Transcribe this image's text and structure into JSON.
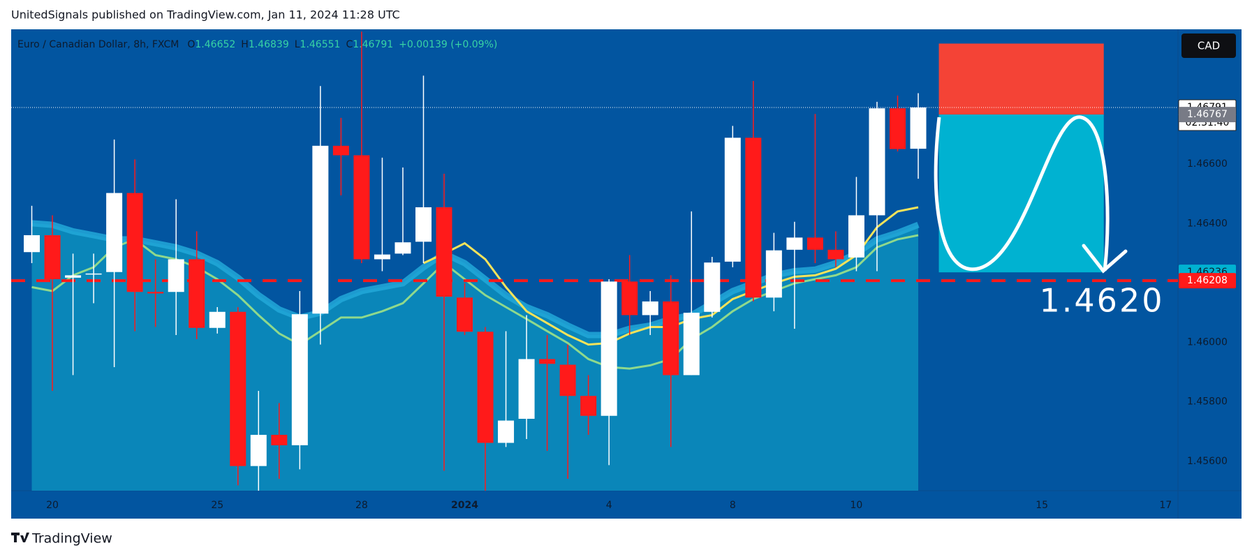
{
  "header": "UnitedSignals published on TradingView.com, Jan 11, 2024 11:28 UTC",
  "footer": "TradingView",
  "chart_data": {
    "type": "candlestick",
    "title": "Euro / Canadian Dollar, 8h, FXCM",
    "currency": "CAD",
    "ohlc_keys": [
      "O",
      "H",
      "L",
      "C"
    ],
    "change": "+0.00139 (+0.09%)",
    "x": [
      0,
      1,
      2,
      3,
      4,
      5,
      6,
      7,
      8,
      9,
      10,
      11,
      12,
      13,
      14,
      15,
      16,
      17,
      18,
      19,
      20,
      21,
      22,
      23,
      24,
      25,
      26,
      27,
      28,
      29,
      30,
      31,
      32,
      33,
      34,
      35,
      36,
      37,
      38,
      39,
      40,
      41,
      42,
      43
    ],
    "open": [
      1.46304,
      1.46361,
      1.46218,
      1.46229,
      1.46237,
      1.46503,
      1.4617,
      1.4617,
      1.4628,
      1.46049,
      1.46103,
      1.45584,
      1.45689,
      1.45654,
      1.46097,
      1.46662,
      1.4663,
      1.4628,
      1.46299,
      1.46339,
      1.46455,
      1.46151,
      1.46036,
      1.45662,
      1.45743,
      1.45944,
      1.45925,
      1.4582,
      1.45753,
      1.46205,
      1.46092,
      1.46138,
      1.4589,
      1.46103,
      1.46272,
      1.46689,
      1.46151,
      1.46312,
      1.46353,
      1.46312,
      1.46286,
      1.46428,
      1.46788,
      1.46652
    ],
    "high": [
      1.4646,
      1.46428,
      1.46299,
      1.46299,
      1.46683,
      1.46616,
      1.4628,
      1.46482,
      1.46374,
      1.46119,
      1.46119,
      1.45837,
      1.45796,
      1.46173,
      1.46863,
      1.46756,
      1.47046,
      1.46622,
      1.46589,
      1.46898,
      1.46568,
      1.46199,
      1.46052,
      1.46038,
      1.46092,
      1.46025,
      1.45993,
      1.4589,
      1.46213,
      1.46294,
      1.46173,
      1.46226,
      1.46441,
      1.46288,
      1.46729,
      1.4688,
      1.46369,
      1.46406,
      1.46769,
      1.46374,
      1.46557,
      1.4681,
      1.46831,
      1.46839
    ],
    "low": [
      1.46267,
      1.45837,
      1.4589,
      1.46132,
      1.45917,
      1.46038,
      1.46052,
      1.46025,
      1.46011,
      1.4603,
      1.45519,
      1.45501,
      1.45541,
      1.45573,
      1.45993,
      1.46495,
      1.46267,
      1.4624,
      1.46294,
      1.46267,
      1.45568,
      1.46025,
      1.45501,
      1.45648,
      1.45675,
      1.45635,
      1.45541,
      1.45689,
      1.45587,
      1.46025,
      1.46025,
      1.45648,
      1.4589,
      1.46084,
      1.46253,
      1.46138,
      1.46105,
      1.46046,
      1.46267,
      1.46253,
      1.4624,
      1.4624,
      1.46643,
      1.46551
    ],
    "close": [
      1.46361,
      1.46213,
      1.46226,
      1.46232,
      1.46503,
      1.4617,
      1.46165,
      1.4628,
      1.46049,
      1.46103,
      1.45584,
      1.45689,
      1.45654,
      1.46095,
      1.46662,
      1.4663,
      1.4628,
      1.46296,
      1.46337,
      1.46455,
      1.46154,
      1.46036,
      1.45662,
      1.45737,
      1.45944,
      1.45928,
      1.4582,
      1.45753,
      1.46205,
      1.46092,
      1.46138,
      1.4589,
      1.461,
      1.46269,
      1.46689,
      1.46151,
      1.4631,
      1.46353,
      1.46312,
      1.4628,
      1.46428,
      1.46788,
      1.46651,
      1.46791
    ],
    "up_color": "#ffffff",
    "down_color": "#ff1a1a",
    "area": {
      "color": "#0a86b9",
      "line_color": "#22a8d8",
      "values": [
        1.46401,
        1.46396,
        1.46374,
        1.46361,
        1.46347,
        1.46347,
        1.46334,
        1.4632,
        1.46299,
        1.46267,
        1.46218,
        1.46159,
        1.46111,
        1.46084,
        1.461,
        1.46146,
        1.46173,
        1.46186,
        1.46199,
        1.46253,
        1.46299,
        1.46267,
        1.46213,
        1.46159,
        1.46119,
        1.46092,
        1.46057,
        1.46025,
        1.46025,
        1.46046,
        1.46057,
        1.46079,
        1.46092,
        1.46132,
        1.46173,
        1.46199,
        1.46226,
        1.4624,
        1.46245,
        1.46267,
        1.46299,
        1.46347,
        1.46369,
        1.46396
      ]
    },
    "lines": [
      {
        "color": "#8fd98c",
        "values": [
          1.46186,
          1.46173,
          1.46226,
          1.46253,
          1.4632,
          1.46347,
          1.46294,
          1.4628,
          1.46253,
          1.46213,
          1.46159,
          1.46092,
          1.4603,
          1.45993,
          1.46038,
          1.46084,
          1.46084,
          1.46105,
          1.46132,
          1.46199,
          1.46267,
          1.46213,
          1.46159,
          1.46119,
          1.46079,
          1.46038,
          1.45998,
          1.45944,
          1.45917,
          1.45912,
          1.45923,
          1.45944,
          1.46011,
          1.46052,
          1.46105,
          1.46146,
          1.46173,
          1.46199,
          1.46213,
          1.46226,
          1.46253,
          1.4632,
          1.46347,
          1.46361
        ]
      },
      {
        "color": "#f5e35a",
        "values": [
          null,
          null,
          null,
          null,
          null,
          null,
          null,
          null,
          null,
          null,
          null,
          null,
          null,
          null,
          null,
          null,
          null,
          null,
          null,
          1.46267,
          1.46299,
          1.46334,
          1.4628,
          1.46186,
          1.46105,
          1.46065,
          1.46025,
          1.45993,
          1.45998,
          1.4603,
          1.46052,
          1.46052,
          1.46079,
          1.46092,
          1.46146,
          1.46173,
          1.46199,
          1.46221,
          1.46226,
          1.46248,
          1.46294,
          1.46388,
          1.46441,
          1.46455
        ]
      }
    ],
    "xlim": [
      -1,
      55.6
    ],
    "xticks": [
      {
        "value": 1,
        "label": "20"
      },
      {
        "value": 9,
        "label": "25"
      },
      {
        "value": 16,
        "label": "28"
      },
      {
        "value": 21,
        "label": "2024"
      },
      {
        "value": 28,
        "label": "4"
      },
      {
        "value": 34,
        "label": "8"
      },
      {
        "value": 40,
        "label": "10"
      },
      {
        "value": 49,
        "label": "15"
      },
      {
        "value": 55,
        "label": "17"
      }
    ],
    "ylim": [
      1.45501,
      1.47054
    ],
    "yticks": [
      {
        "value": 1.456,
        "label": "1.45600"
      },
      {
        "value": 1.458,
        "label": "1.45800"
      },
      {
        "value": 1.46,
        "label": "1.46000"
      },
      {
        "value": 1.464,
        "label": "1.46400"
      },
      {
        "value": 1.466,
        "label": "1.46600"
      }
    ],
    "last_price": {
      "value": 1.46791,
      "label": "1.46791"
    },
    "countdown": "02:31:40",
    "hline": {
      "value": 1.46208,
      "label": "1.46208",
      "color": "#ff1a1a"
    },
    "position": {
      "x_start": 44,
      "x_end": 52,
      "stop": 1.47006,
      "entry": {
        "value": 1.46767,
        "label": "1.46767"
      },
      "target": {
        "value": 1.46236,
        "label": "1.46236"
      },
      "stop_color": "#f44336",
      "target_color": "#00b2d1"
    },
    "annotation": "1.4620"
  }
}
